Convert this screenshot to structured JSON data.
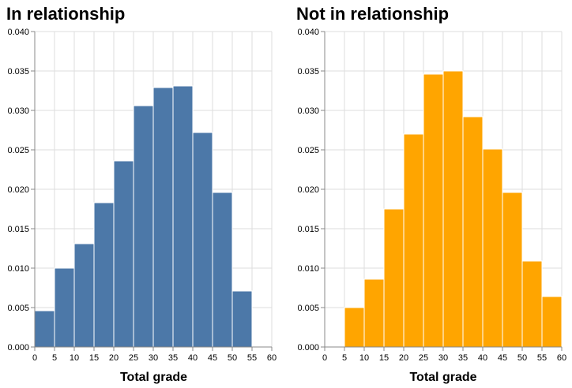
{
  "chart_data": [
    {
      "type": "bar",
      "title": "In relationship",
      "xlabel": "Total grade",
      "ylabel": "",
      "color": "#4c78a8",
      "xlim": [
        0,
        60
      ],
      "ylim": [
        0,
        0.04
      ],
      "x_ticks": [
        "0",
        "5",
        "10",
        "15",
        "20",
        "25",
        "30",
        "35",
        "40",
        "45",
        "50",
        "55",
        "60"
      ],
      "y_ticks": [
        "0.000",
        "0.005",
        "0.010",
        "0.015",
        "0.020",
        "0.025",
        "0.030",
        "0.035",
        "0.040"
      ],
      "bin_edges": [
        0,
        5,
        10,
        15,
        20,
        25,
        30,
        35,
        40,
        45,
        50,
        55
      ],
      "values": [
        0.0046,
        0.01,
        0.0131,
        0.0183,
        0.0236,
        0.0306,
        0.0329,
        0.0331,
        0.0272,
        0.0196,
        0.0071
      ],
      "grid": true
    },
    {
      "type": "bar",
      "title": "Not in relationship",
      "xlabel": "Total grade",
      "ylabel": "",
      "color": "#ffa500",
      "xlim": [
        0,
        60
      ],
      "ylim": [
        0,
        0.04
      ],
      "x_ticks": [
        "0",
        "5",
        "10",
        "15",
        "20",
        "25",
        "30",
        "35",
        "40",
        "45",
        "50",
        "55",
        "60"
      ],
      "y_ticks": [
        "0.000",
        "0.005",
        "0.010",
        "0.015",
        "0.020",
        "0.025",
        "0.030",
        "0.035",
        "0.040"
      ],
      "bin_edges": [
        5,
        10,
        15,
        20,
        25,
        30,
        35,
        40,
        45,
        50,
        55,
        60
      ],
      "values": [
        0.005,
        0.0086,
        0.0175,
        0.027,
        0.0346,
        0.035,
        0.0292,
        0.0251,
        0.0196,
        0.0109,
        0.0064
      ],
      "grid": true
    }
  ]
}
